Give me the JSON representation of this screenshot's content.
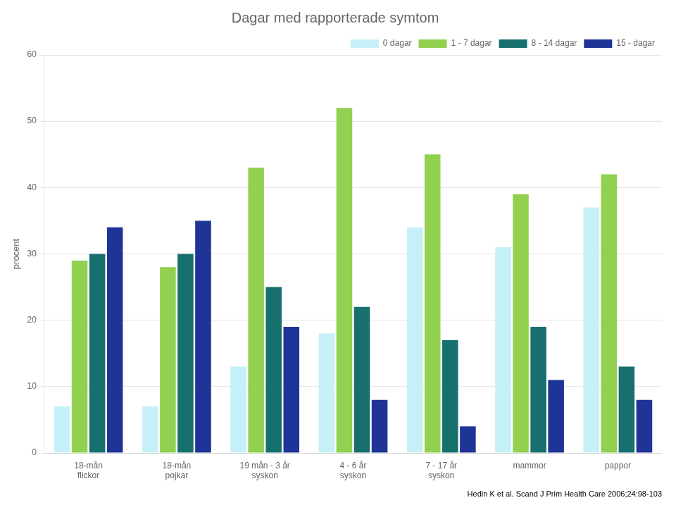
{
  "chart_data": {
    "type": "bar",
    "title": "Dagar med rapporterade symtom",
    "ylabel": "procent",
    "footnote": "Hedin K et al. Scand J Prim Health Care 2006;24:98-103",
    "categories": [
      "18-mån\nflickor",
      "18-mån\npojkar",
      "19 mån - 3 år\nsyskon",
      "4 - 6 år\nsyskon",
      "7 - 17 år\nsyskon",
      "mammor",
      "pappor"
    ],
    "series": [
      {
        "name": "0 dagar",
        "color": "#c6f0f7",
        "values": [
          7,
          7,
          13,
          18,
          34,
          31,
          37
        ]
      },
      {
        "name": "1 - 7 dagar",
        "color": "#92d050",
        "values": [
          29,
          28,
          43,
          52,
          45,
          39,
          42
        ]
      },
      {
        "name": "8 - 14 dagar",
        "color": "#17706e",
        "values": [
          30,
          30,
          25,
          22,
          17,
          19,
          13
        ]
      },
      {
        "name": "15 - dagar",
        "color": "#1f3497",
        "values": [
          34,
          35,
          19,
          8,
          4,
          11,
          8
        ]
      }
    ],
    "ylim": [
      0,
      60
    ],
    "yticks": [
      0,
      10,
      20,
      30,
      40,
      50,
      60
    ],
    "grid": true,
    "legend": "upper right"
  }
}
